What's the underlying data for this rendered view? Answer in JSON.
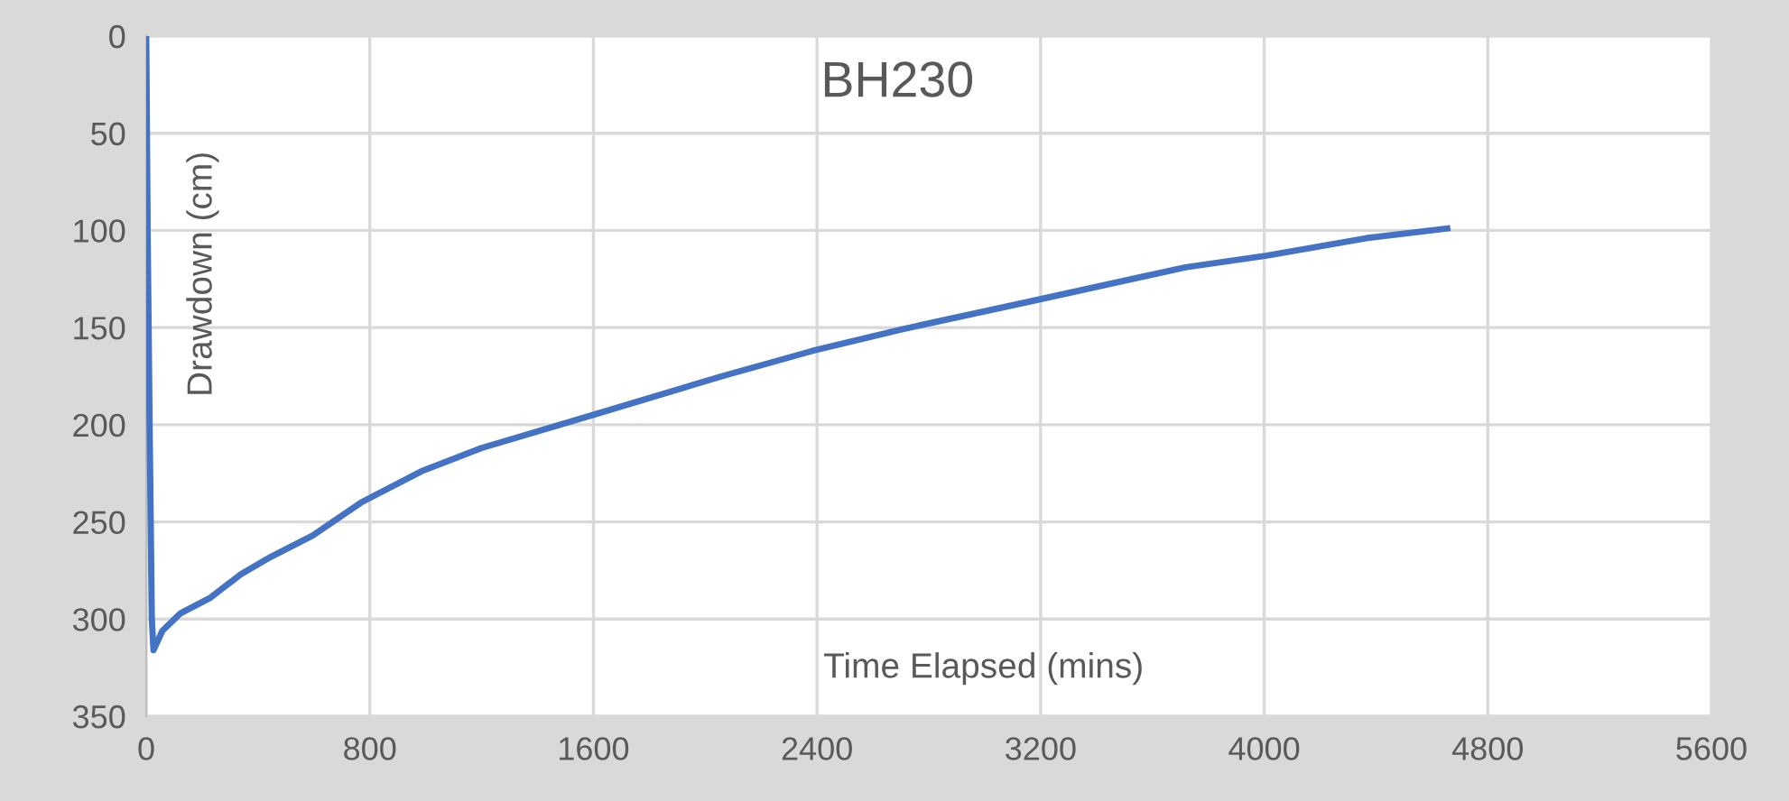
{
  "chart_data": {
    "type": "line",
    "title": "BH230",
    "xlabel": "Time Elapsed (mins)",
    "ylabel": "Drawdown (cm)",
    "series": [
      {
        "color": "#4472c4",
        "x": [
          0,
          5,
          12,
          20,
          26,
          58,
          123,
          230,
          338,
          446,
          596,
          769,
          984,
          1199,
          1597,
          2061,
          2384,
          2700,
          3180,
          3718,
          4009,
          4365,
          4655
        ],
        "values": [
          0,
          100,
          200,
          300,
          316,
          306,
          297,
          289,
          277,
          268,
          257,
          240,
          224,
          212,
          195,
          175,
          162,
          151,
          136,
          119,
          113,
          104,
          99
        ]
      }
    ],
    "xlim": [
      0,
      5600
    ],
    "xticks": [
      0,
      800,
      1600,
      2400,
      3200,
      4000,
      4800,
      5600
    ],
    "ylim": [
      350,
      0
    ],
    "yticks": [
      0,
      50,
      100,
      150,
      200,
      250,
      300,
      350
    ],
    "grid": true,
    "marker": "none",
    "line_style": "solid"
  }
}
